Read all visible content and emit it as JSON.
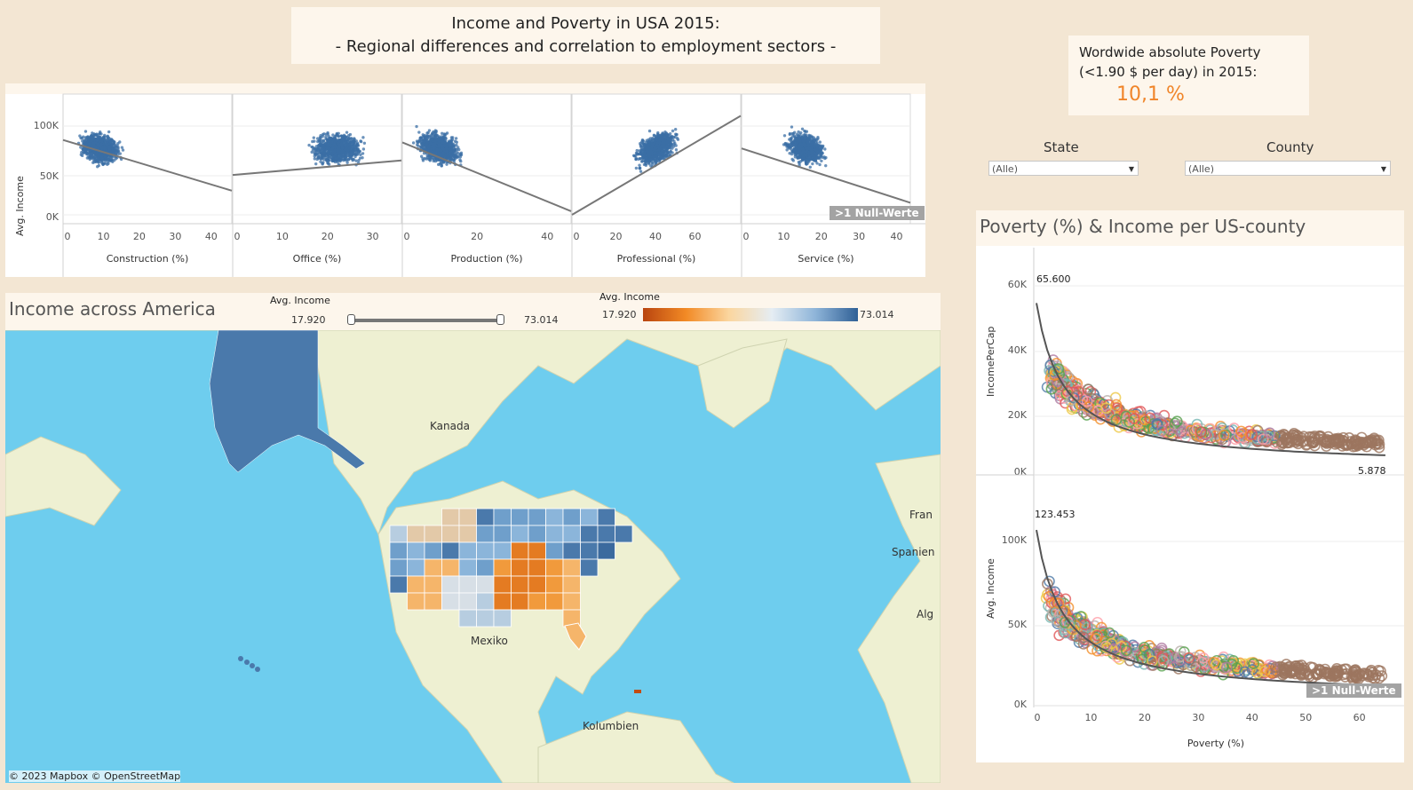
{
  "header": {
    "title_line1": "Income and Poverty in USA 2015:",
    "title_line2": "- Regional differences and correlation to employment sectors -"
  },
  "stat": {
    "line1": "Wordwide absolute Poverty",
    "line2": "(<1.90 $ per day) in  2015:",
    "value": "10,1 %"
  },
  "filters": {
    "state": {
      "label": "State",
      "value": "(Alle)"
    },
    "county": {
      "label": "County",
      "value": "(Alle)"
    }
  },
  "sectors": {
    "ylabel": "Avg. Income",
    "yticks": [
      "100K",
      "50K",
      "0K"
    ],
    "null_badge": ">1 Null-Werte",
    "charts": [
      {
        "label": "Construction (%)",
        "ticks": [
          "0",
          "10",
          "20",
          "30",
          "40"
        ]
      },
      {
        "label": "Office (%)",
        "ticks": [
          "0",
          "10",
          "20",
          "30"
        ]
      },
      {
        "label": "Production (%)",
        "ticks": [
          "0",
          "20",
          "40"
        ]
      },
      {
        "label": "Professional (%)",
        "ticks": [
          "0",
          "20",
          "40",
          "60"
        ]
      },
      {
        "label": "Service (%)",
        "ticks": [
          "0",
          "10",
          "20",
          "30",
          "40"
        ]
      }
    ]
  },
  "map": {
    "title": "Income across America",
    "slider_label": "Avg. Income",
    "slider_min": "17.920",
    "slider_max": "73.014",
    "legend_label": "Avg. Income",
    "legend_min": "17.920",
    "legend_max": "73.014",
    "places": [
      "Kanada",
      "Mexiko",
      "Kolumbien",
      "Fran",
      "Spanien",
      "Alg"
    ],
    "attribution": "© 2023 Mapbox © OpenStreetMap",
    "colors": {
      "ocean": "#6ecdee",
      "land": "#eef0d2",
      "high": "#2f6096",
      "low": "#f28a25"
    }
  },
  "poverty": {
    "title": "Poverty (%) & Income per US-county",
    "top": {
      "ylabel": "IncomePerCap",
      "yticks": [
        "60K",
        "40K",
        "20K",
        "0K"
      ],
      "label_max": "65.600",
      "label_min": "5.878"
    },
    "bottom": {
      "ylabel": "Avg. Income",
      "yticks": [
        "100K",
        "50K",
        "0K"
      ],
      "label_max": "123.453",
      "null_badge": ">1 Null-Werte"
    },
    "xticks": [
      "0",
      "10",
      "20",
      "30",
      "40",
      "50",
      "60"
    ],
    "xlabel": "Poverty (%)"
  }
}
